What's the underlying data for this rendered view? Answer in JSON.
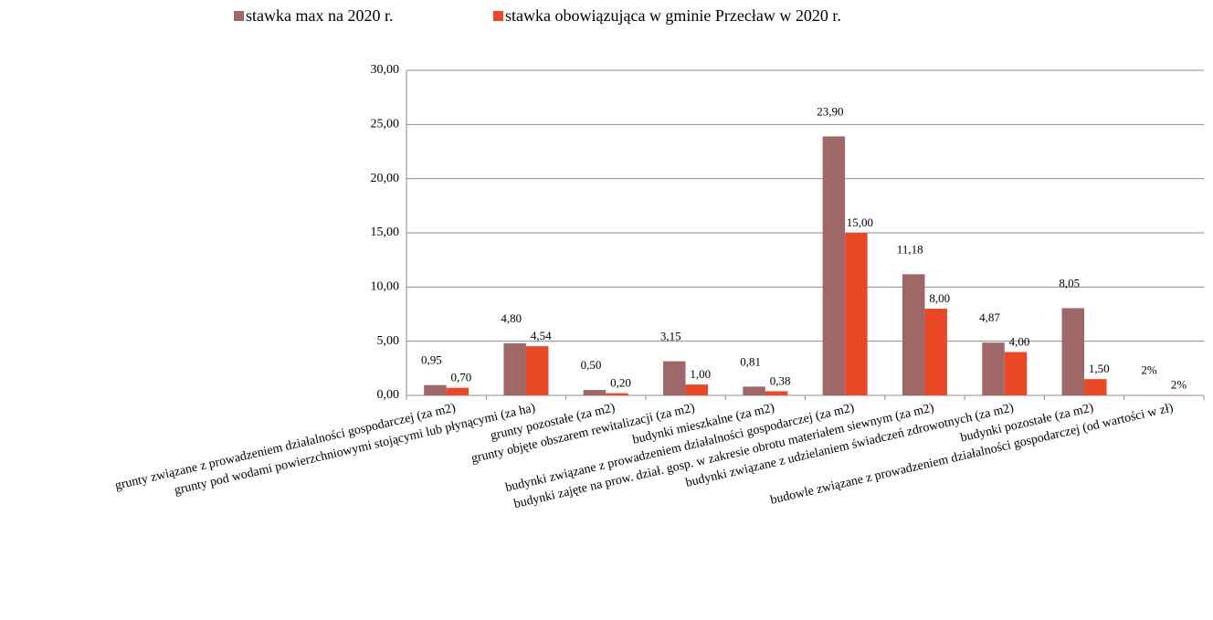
{
  "chart_data": {
    "type": "bar",
    "categories": [
      "grunty związane z prowadzeniem działalności gospodarczej (za m2)",
      "grunty pod wodami powierzchniowymi stojącymi lub płynącymi (za ha)",
      "grunty pozostałe (za m2)",
      "grunty objęte obszarem rewitalizacji (za m2)",
      "budynki mieszkalne (za m2)",
      "budynki związane z prowadzeniem działalności gospodarczej (za m2)",
      "budynki zajęte na prow. dział. gosp. w zakresie obrotu materiałem siewnym (za m2)",
      "budynki związane z udzielaniem świadczeń zdrowotnych (za m2)",
      "budynki pozostałe (za m2)",
      "budowle związane z prowadzeniem działalności gospodarczej (od wartości w zł)"
    ],
    "series": [
      {
        "name": "stawka max na 2020 r.",
        "color": "#9e6868",
        "values": [
          0.95,
          4.8,
          0.5,
          3.15,
          0.81,
          23.9,
          11.18,
          4.87,
          8.05,
          0.02
        ],
        "value_labels": [
          "0,95",
          "4,80",
          "0,50",
          "3,15",
          "0,81",
          "23,90",
          "11,18",
          "4,87",
          "8,05",
          "2%"
        ]
      },
      {
        "name": "stawka obowiązująca w gminie Przecław w 2020 r.",
        "color": "#e84a27",
        "values": [
          0.7,
          4.54,
          0.2,
          1.0,
          0.38,
          15.0,
          8.0,
          4.0,
          1.5,
          0.02
        ],
        "value_labels": [
          "0,70",
          "4,54",
          "0,20",
          "1,00",
          "0,38",
          "15,00",
          "8,00",
          "4,00",
          "1,50",
          "2%"
        ]
      }
    ],
    "ylim": [
      0,
      30
    ],
    "yticks": [
      {
        "value": 0,
        "label": "0,00"
      },
      {
        "value": 5,
        "label": "5,00"
      },
      {
        "value": 10,
        "label": "10,00"
      },
      {
        "value": 15,
        "label": "15,00"
      },
      {
        "value": 20,
        "label": "20,00"
      },
      {
        "value": 25,
        "label": "25,00"
      },
      {
        "value": 30,
        "label": "30,00"
      }
    ],
    "grid": true,
    "legend": "top"
  }
}
